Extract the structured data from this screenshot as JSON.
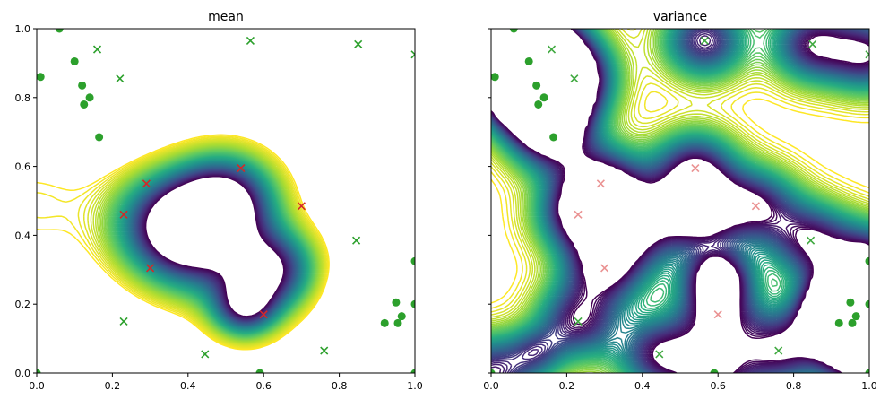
{
  "chart_data": [
    {
      "type": "contour",
      "title": "mean",
      "xlim": [
        0,
        1
      ],
      "ylim": [
        0,
        1
      ],
      "xticks": [
        "0.0",
        "0.2",
        "0.4",
        "0.6",
        "0.8",
        "1.0"
      ],
      "yticks": [
        "0.0",
        "0.2",
        "0.4",
        "0.6",
        "0.8",
        "1.0"
      ],
      "colormap": "viridis",
      "grid": false
    },
    {
      "type": "contour",
      "title": "variance",
      "xlim": [
        0,
        1
      ],
      "ylim": [
        0,
        1
      ],
      "xticks": [
        "0.0",
        "0.2",
        "0.4",
        "0.6",
        "0.8",
        "1.0"
      ],
      "yticks": [],
      "colormap": "viridis",
      "grid": false
    }
  ],
  "points": {
    "green_circles": {
      "color": "#2ca02c",
      "marker": "circle",
      "xy": [
        [
          0.01,
          0.86
        ],
        [
          0.06,
          1.0
        ],
        [
          0.1,
          0.905
        ],
        [
          0.12,
          0.835
        ],
        [
          0.125,
          0.78
        ],
        [
          0.14,
          0.8
        ],
        [
          0.165,
          0.685
        ],
        [
          0.95,
          0.205
        ],
        [
          0.92,
          0.145
        ],
        [
          0.955,
          0.145
        ],
        [
          0.965,
          0.165
        ],
        [
          1.0,
          0.2
        ],
        [
          1.0,
          0.325
        ],
        [
          0.59,
          0.0
        ],
        [
          1.0,
          0.0
        ],
        [
          0.0,
          0.0
        ]
      ]
    },
    "green_crosses": {
      "color": "#2ca02c",
      "marker": "x",
      "xy": [
        [
          0.16,
          0.94
        ],
        [
          0.22,
          0.855
        ],
        [
          0.565,
          0.965
        ],
        [
          0.85,
          0.955
        ],
        [
          1.0,
          0.925
        ],
        [
          0.845,
          0.385
        ],
        [
          0.76,
          0.065
        ],
        [
          0.445,
          0.055
        ],
        [
          0.23,
          0.15
        ]
      ]
    },
    "red_crosses": {
      "color": "#d62728",
      "marker": "x",
      "xy": [
        [
          0.23,
          0.46
        ],
        [
          0.3,
          0.305
        ],
        [
          0.54,
          0.595
        ],
        [
          0.7,
          0.485
        ],
        [
          0.6,
          0.17
        ],
        [
          0.29,
          0.55
        ]
      ]
    }
  }
}
